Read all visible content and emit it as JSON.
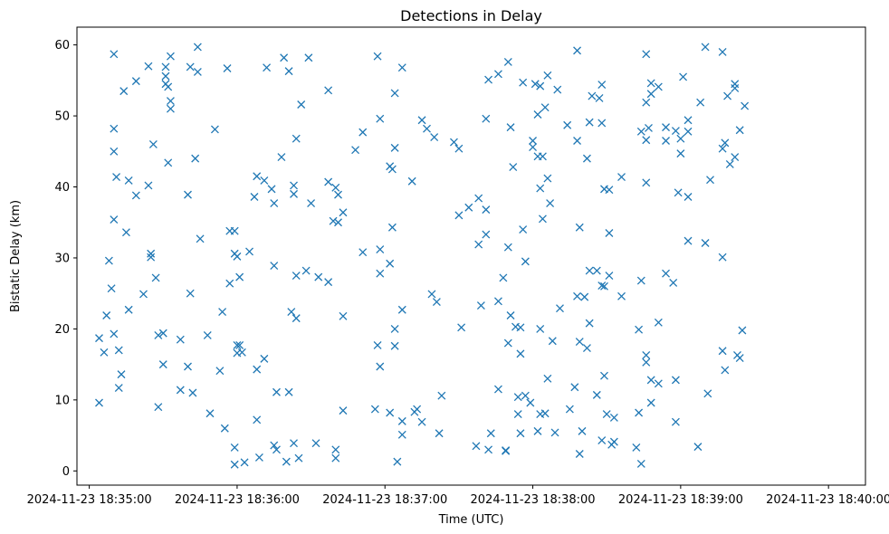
{
  "chart_data": {
    "type": "scatter",
    "title": "Detections in Delay",
    "xlabel": "Time (UTC)",
    "ylabel": "Bistatic Delay (km)",
    "marker": "x",
    "color": "#1f77b4",
    "x_ticks": [
      {
        "value": 0,
        "label": "2024-11-23 18:35:00"
      },
      {
        "value": 60,
        "label": "2024-11-23 18:36:00"
      },
      {
        "value": 120,
        "label": "2024-11-23 18:37:00"
      },
      {
        "value": 180,
        "label": "2024-11-23 18:38:00"
      },
      {
        "value": 240,
        "label": "2024-11-23 18:39:00"
      },
      {
        "value": 300,
        "label": "2024-11-23 18:40:00"
      }
    ],
    "y_ticks": [
      0,
      10,
      20,
      30,
      40,
      50,
      60
    ],
    "xlim": [
      -5,
      315
    ],
    "ylim": [
      -2,
      62.5
    ],
    "x_unit": "seconds after 2024-11-23 18:35:00",
    "points": [
      [
        4,
        9.6
      ],
      [
        4,
        18.7
      ],
      [
        6,
        16.7
      ],
      [
        7,
        21.9
      ],
      [
        8,
        29.6
      ],
      [
        9,
        25.7
      ],
      [
        10,
        58.7
      ],
      [
        10,
        35.4
      ],
      [
        10,
        48.2
      ],
      [
        10,
        45
      ],
      [
        10,
        19.3
      ],
      [
        11,
        41.4
      ],
      [
        12,
        17
      ],
      [
        12,
        11.7
      ],
      [
        13,
        13.6
      ],
      [
        14,
        53.5
      ],
      [
        15,
        33.6
      ],
      [
        16,
        22.7
      ],
      [
        16,
        40.9
      ],
      [
        19,
        38.8
      ],
      [
        19,
        54.9
      ],
      [
        22,
        24.9
      ],
      [
        24,
        40.2
      ],
      [
        24,
        57
      ],
      [
        25,
        30.1
      ],
      [
        25,
        30.6
      ],
      [
        26,
        46
      ],
      [
        27,
        27.2
      ],
      [
        28,
        19.1
      ],
      [
        28,
        9
      ],
      [
        30,
        15
      ],
      [
        30,
        19.4
      ],
      [
        31,
        54.5
      ],
      [
        31,
        56.9
      ],
      [
        31,
        55.6
      ],
      [
        32,
        54.1
      ],
      [
        32,
        43.4
      ],
      [
        33,
        58.4
      ],
      [
        33,
        52.1
      ],
      [
        33,
        51
      ],
      [
        37,
        11.4
      ],
      [
        37,
        18.5
      ],
      [
        40,
        38.9
      ],
      [
        40,
        14.7
      ],
      [
        41,
        56.9
      ],
      [
        41,
        25
      ],
      [
        42,
        11
      ],
      [
        43,
        44
      ],
      [
        44,
        56.2
      ],
      [
        44,
        59.7
      ],
      [
        45,
        32.7
      ],
      [
        48,
        19.1
      ],
      [
        49,
        8.1
      ],
      [
        51,
        48.1
      ],
      [
        53,
        14.1
      ],
      [
        54,
        22.4
      ],
      [
        55,
        6
      ],
      [
        56,
        56.7
      ],
      [
        57,
        26.4
      ],
      [
        57,
        33.8
      ],
      [
        59,
        33.8
      ],
      [
        59,
        30.6
      ],
      [
        59,
        3.3
      ],
      [
        59,
        0.9
      ],
      [
        60,
        16.6
      ],
      [
        60,
        30.2
      ],
      [
        60,
        17.7
      ],
      [
        61,
        27.3
      ],
      [
        61,
        17.7
      ],
      [
        62,
        16.7
      ],
      [
        63,
        1.2
      ],
      [
        65,
        30.9
      ],
      [
        67,
        38.6
      ],
      [
        68,
        41.5
      ],
      [
        68,
        14.3
      ],
      [
        68,
        7.2
      ],
      [
        69,
        1.9
      ],
      [
        71,
        40.9
      ],
      [
        71,
        15.8
      ],
      [
        72,
        56.8
      ],
      [
        74,
        39.7
      ],
      [
        75,
        28.9
      ],
      [
        75,
        37.7
      ],
      [
        75,
        3.6
      ],
      [
        76,
        3
      ],
      [
        76,
        11.1
      ],
      [
        78,
        44.2
      ],
      [
        79,
        58.2
      ],
      [
        80,
        1.3
      ],
      [
        81,
        56.3
      ],
      [
        81,
        11.1
      ],
      [
        82,
        22.4
      ],
      [
        83,
        40.2
      ],
      [
        83,
        39
      ],
      [
        83,
        3.9
      ],
      [
        84,
        27.5
      ],
      [
        84,
        46.8
      ],
      [
        84,
        21.5
      ],
      [
        85,
        1.8
      ],
      [
        86,
        51.6
      ],
      [
        88,
        28.2
      ],
      [
        89,
        58.2
      ],
      [
        90,
        37.7
      ],
      [
        92,
        3.9
      ],
      [
        93,
        27.3
      ],
      [
        97,
        26.6
      ],
      [
        97,
        40.7
      ],
      [
        97,
        53.6
      ],
      [
        99,
        35.2
      ],
      [
        100,
        1.8
      ],
      [
        100,
        3
      ],
      [
        100,
        39.9
      ],
      [
        101,
        38.9
      ],
      [
        101,
        35
      ],
      [
        103,
        36.4
      ],
      [
        103,
        21.8
      ],
      [
        103,
        8.5
      ],
      [
        108,
        45.2
      ],
      [
        111,
        47.7
      ],
      [
        111,
        30.8
      ],
      [
        116,
        8.7
      ],
      [
        117,
        17.7
      ],
      [
        117,
        58.4
      ],
      [
        118,
        14.7
      ],
      [
        118,
        31.2
      ],
      [
        118,
        49.6
      ],
      [
        118,
        27.8
      ],
      [
        122,
        8.2
      ],
      [
        122,
        42.9
      ],
      [
        122,
        29.2
      ],
      [
        123,
        42.5
      ],
      [
        123,
        34.3
      ],
      [
        124,
        45.5
      ],
      [
        124,
        53.2
      ],
      [
        124,
        20
      ],
      [
        124,
        17.6
      ],
      [
        125,
        1.3
      ],
      [
        127,
        7
      ],
      [
        127,
        5.1
      ],
      [
        127,
        56.8
      ],
      [
        127,
        22.7
      ],
      [
        131,
        40.8
      ],
      [
        132,
        8.3
      ],
      [
        133,
        8.7
      ],
      [
        135,
        49.4
      ],
      [
        135,
        6.9
      ],
      [
        137,
        48.2
      ],
      [
        139,
        24.9
      ],
      [
        140,
        47
      ],
      [
        141,
        23.8
      ],
      [
        142,
        5.3
      ],
      [
        143,
        10.6
      ],
      [
        148,
        46.3
      ],
      [
        150,
        45.4
      ],
      [
        150,
        36
      ],
      [
        151,
        20.2
      ],
      [
        154,
        37.1
      ],
      [
        157,
        3.5
      ],
      [
        158,
        31.9
      ],
      [
        158,
        38.4
      ],
      [
        159,
        23.3
      ],
      [
        161,
        49.6
      ],
      [
        161,
        36.8
      ],
      [
        161,
        33.3
      ],
      [
        162,
        55.1
      ],
      [
        162,
        3
      ],
      [
        163,
        5.3
      ],
      [
        166,
        11.5
      ],
      [
        166,
        55.9
      ],
      [
        166,
        23.9
      ],
      [
        168,
        27.2
      ],
      [
        169,
        2.9
      ],
      [
        169,
        2.8
      ],
      [
        170,
        57.6
      ],
      [
        170,
        31.5
      ],
      [
        170,
        18
      ],
      [
        171,
        48.4
      ],
      [
        171,
        21.9
      ],
      [
        172,
        42.8
      ],
      [
        173,
        20.3
      ],
      [
        174,
        10.4
      ],
      [
        174,
        8
      ],
      [
        175,
        5.3
      ],
      [
        175,
        16.5
      ],
      [
        175,
        20.2
      ],
      [
        176,
        34
      ],
      [
        176,
        54.7
      ],
      [
        177,
        10.6
      ],
      [
        177,
        29.5
      ],
      [
        179,
        9.6
      ],
      [
        180,
        46.5
      ],
      [
        180,
        45.6
      ],
      [
        181,
        54.5
      ],
      [
        182,
        50.2
      ],
      [
        182,
        5.6
      ],
      [
        182,
        44.3
      ],
      [
        183,
        8
      ],
      [
        183,
        20
      ],
      [
        183,
        54.2
      ],
      [
        183,
        39.8
      ],
      [
        184,
        44.3
      ],
      [
        184,
        35.5
      ],
      [
        185,
        8.1
      ],
      [
        185,
        51.2
      ],
      [
        186,
        41.2
      ],
      [
        186,
        13
      ],
      [
        186,
        55.7
      ],
      [
        187,
        37.7
      ],
      [
        188,
        18.3
      ],
      [
        189,
        5.4
      ],
      [
        190,
        53.7
      ],
      [
        191,
        22.9
      ],
      [
        194,
        48.7
      ],
      [
        195,
        8.7
      ],
      [
        197,
        11.8
      ],
      [
        198,
        59.2
      ],
      [
        198,
        24.6
      ],
      [
        198,
        46.5
      ],
      [
        199,
        2.4
      ],
      [
        199,
        18.2
      ],
      [
        199,
        34.3
      ],
      [
        200,
        5.6
      ],
      [
        201,
        24.5
      ],
      [
        202,
        17.3
      ],
      [
        202,
        44
      ],
      [
        203,
        28.2
      ],
      [
        203,
        20.8
      ],
      [
        203,
        49.1
      ],
      [
        204,
        52.8
      ],
      [
        206,
        28.2
      ],
      [
        206,
        10.7
      ],
      [
        207,
        52.5
      ],
      [
        208,
        54.4
      ],
      [
        208,
        49
      ],
      [
        208,
        26.1
      ],
      [
        208,
        4.3
      ],
      [
        209,
        39.7
      ],
      [
        209,
        13.4
      ],
      [
        209,
        26
      ],
      [
        210,
        8
      ],
      [
        211,
        33.5
      ],
      [
        211,
        39.6
      ],
      [
        211,
        27.5
      ],
      [
        212,
        3.7
      ],
      [
        213,
        7.5
      ],
      [
        213,
        4.1
      ],
      [
        216,
        41.4
      ],
      [
        216,
        24.6
      ],
      [
        222,
        3.3
      ],
      [
        223,
        19.9
      ],
      [
        223,
        8.2
      ],
      [
        224,
        47.8
      ],
      [
        224,
        26.8
      ],
      [
        224,
        1
      ],
      [
        226,
        58.7
      ],
      [
        226,
        51.9
      ],
      [
        226,
        46.6
      ],
      [
        226,
        40.6
      ],
      [
        226,
        16.3
      ],
      [
        226,
        15.3
      ],
      [
        227,
        48.3
      ],
      [
        228,
        53.1
      ],
      [
        228,
        54.6
      ],
      [
        228,
        9.6
      ],
      [
        228,
        12.8
      ],
      [
        231,
        54.1
      ],
      [
        231,
        20.9
      ],
      [
        231,
        12.3
      ],
      [
        234,
        27.8
      ],
      [
        234,
        48.4
      ],
      [
        234,
        46.5
      ],
      [
        237,
        26.5
      ],
      [
        238,
        6.9
      ],
      [
        238,
        47.9
      ],
      [
        238,
        12.8
      ],
      [
        239,
        39.2
      ],
      [
        240,
        46.8
      ],
      [
        240,
        44.7
      ],
      [
        241,
        55.5
      ],
      [
        243,
        49.4
      ],
      [
        243,
        47.8
      ],
      [
        243,
        38.6
      ],
      [
        243,
        32.4
      ],
      [
        247,
        3.4
      ],
      [
        248,
        51.9
      ],
      [
        250,
        59.7
      ],
      [
        250,
        32.1
      ],
      [
        251,
        10.9
      ],
      [
        252,
        41
      ],
      [
        257,
        45.4
      ],
      [
        257,
        30.1
      ],
      [
        257,
        16.9
      ],
      [
        257,
        59
      ],
      [
        258,
        14.2
      ],
      [
        258,
        46.2
      ],
      [
        259,
        52.8
      ],
      [
        260,
        43.2
      ],
      [
        262,
        53.9
      ],
      [
        262,
        54.5
      ],
      [
        262,
        44.2
      ],
      [
        263,
        16.3
      ],
      [
        264,
        48
      ],
      [
        264,
        15.9
      ],
      [
        265,
        19.8
      ],
      [
        266,
        51.4
      ]
    ]
  }
}
